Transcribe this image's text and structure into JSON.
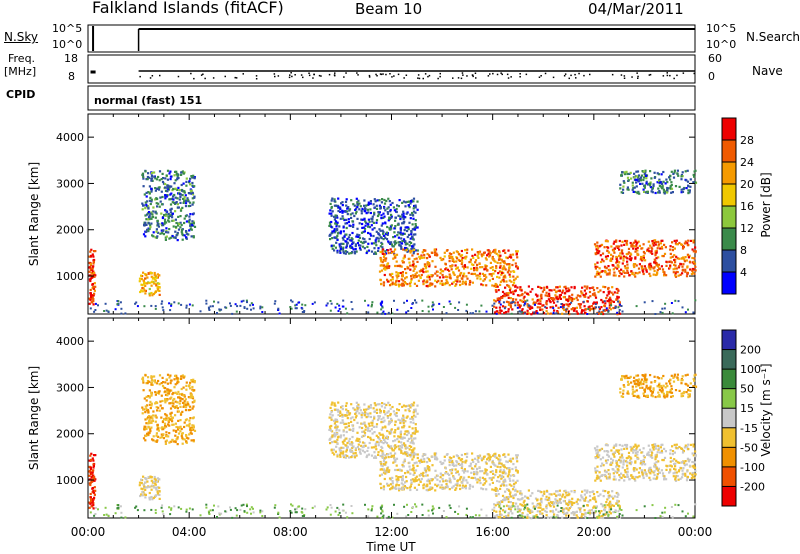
{
  "header": {
    "station": "Falkland Islands (fitACF)",
    "beam": "Beam 10",
    "date": "04/Mar/2011"
  },
  "strip_panels": {
    "nsky": {
      "label": "N.Sky",
      "tick_top": "10^5",
      "tick_bottom": "10^0"
    },
    "nsearch": {
      "label": "N.Search",
      "line_style": "dotted",
      "tick_top": "10^5",
      "tick_bottom": "10^0"
    },
    "freq": {
      "label_line1": "Freq.",
      "label_line2": "[MHz]",
      "tick_top": "18",
      "tick_bottom": "8"
    },
    "nave": {
      "label": "Nave",
      "line_style": "dotted",
      "tick_top": "60",
      "tick_bottom": "0"
    },
    "cpid": {
      "label": "CPID",
      "value": "normal (fast) 151"
    }
  },
  "axes": {
    "y_label": "Slant Range [km]",
    "y_ticks": [
      "1000",
      "2000",
      "3000",
      "4000"
    ],
    "x_ticks": [
      "00:00",
      "04:00",
      "08:00",
      "12:00",
      "16:00",
      "20:00",
      "00:00"
    ],
    "x_label": "Time UT"
  },
  "power_scale": {
    "title": "Power [dB]",
    "ticks": [
      "4",
      "8",
      "12",
      "16",
      "20",
      "24",
      "28"
    ],
    "colors": [
      "#0000ff",
      "#2d4fa0",
      "#3a8a4a",
      "#8cc83c",
      "#f0c800",
      "#f59a00",
      "#f05a00",
      "#ee0000"
    ]
  },
  "velocity_scale": {
    "title": "Velocity [m s⁻¹]",
    "ticks": [
      "200",
      "100",
      "50",
      "15",
      "-15",
      "-50",
      "-100",
      "-200"
    ],
    "colors": [
      "#2a2aa8",
      "#3a6a5a",
      "#3a8a3a",
      "#88c848",
      "#c8c8c8",
      "#f0c030",
      "#f09000",
      "#f05000",
      "#ee0000"
    ]
  },
  "chart_data": {
    "type": "heatmap",
    "x_range_hours": [
      0,
      24
    ],
    "y_range_km": [
      180,
      4500
    ],
    "panels": [
      "Power [dB]",
      "Velocity [m s⁻¹]"
    ],
    "scatter_regions": [
      {
        "t_start": 0.0,
        "t_end": 0.25,
        "r_min": 400,
        "r_max": 1600,
        "power_db": 28,
        "velocity": -200
      },
      {
        "t_start": 2.0,
        "t_end": 2.8,
        "r_min": 600,
        "r_max": 1100,
        "power_db": 20,
        "velocity": -15
      },
      {
        "t_start": 2.1,
        "t_end": 4.2,
        "r_min": 1800,
        "r_max": 3300,
        "power_db": 8,
        "velocity": -50
      },
      {
        "t_start": 9.5,
        "t_end": 13.0,
        "r_min": 1500,
        "r_max": 2700,
        "power_db": 6,
        "velocity": -15
      },
      {
        "t_start": 11.5,
        "t_end": 17.0,
        "r_min": 800,
        "r_max": 1600,
        "power_db": 24,
        "velocity": -15
      },
      {
        "t_start": 16.0,
        "t_end": 21.0,
        "r_min": 200,
        "r_max": 800,
        "power_db": 28,
        "velocity": -15
      },
      {
        "t_start": 20.0,
        "t_end": 24.0,
        "r_min": 1000,
        "r_max": 1800,
        "power_db": 26,
        "velocity": -15
      },
      {
        "t_start": 21.0,
        "t_end": 24.0,
        "r_min": 2800,
        "r_max": 3300,
        "power_db": 8,
        "velocity": -50
      }
    ]
  }
}
